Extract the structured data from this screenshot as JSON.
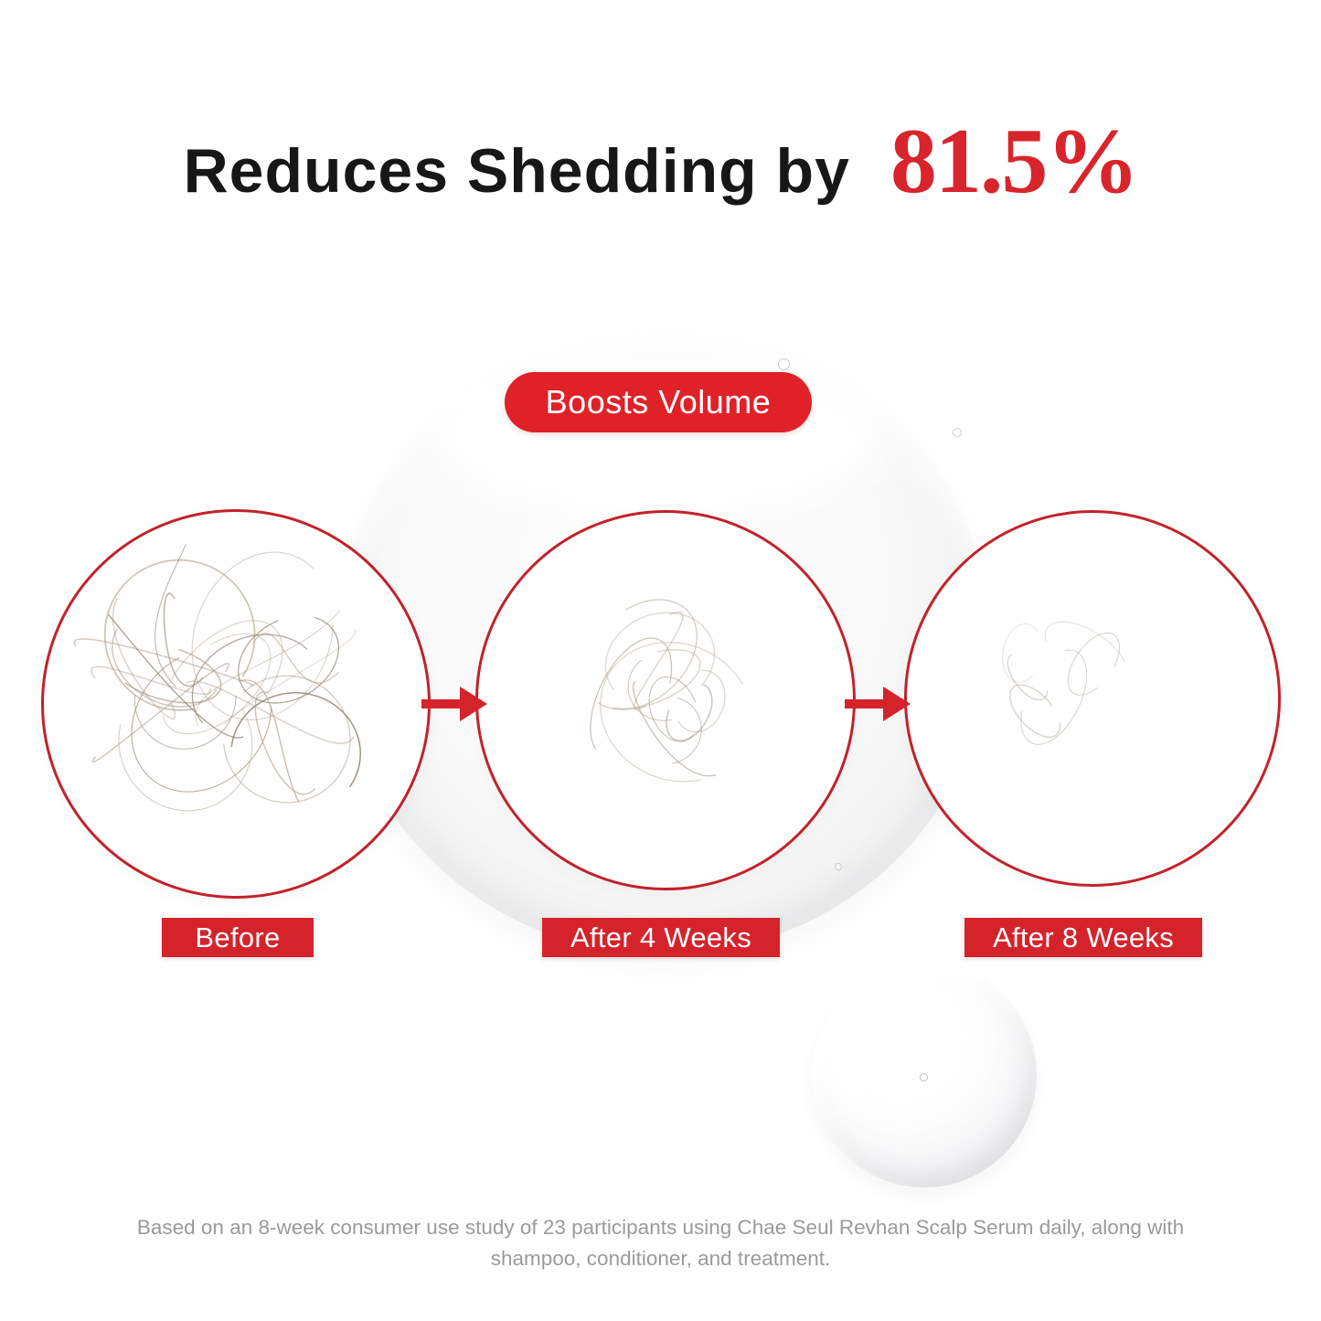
{
  "page": {
    "background": "#ffffff"
  },
  "header": {
    "title": "Reduces Shedding by",
    "stat": "81.5%",
    "title_color": "#171717",
    "stat_color": "#d8242b"
  },
  "badge": {
    "label": "Boosts Volume",
    "bg_color": "#e02128",
    "text_color": "#ffffff"
  },
  "comparison": {
    "circle_border_color": "#c2222a",
    "label_bg_color": "#d5232b",
    "label_text_color": "#ffffff",
    "arrow_color": "#d5232b",
    "stages": [
      {
        "label": "Before",
        "hair_density": "dense",
        "strands": 26
      },
      {
        "label": "After 4 Weeks",
        "hair_density": "medium",
        "strands": 12
      },
      {
        "label": "After 8 Weeks",
        "hair_density": "sparse",
        "strands": 6
      }
    ]
  },
  "footnote": {
    "text": "Based on an 8-week consumer use study of 23 participants using Chae Seul Revhan Scalp Serum daily, along with shampoo, conditioner, and treatment.",
    "color": "#9a9a9a"
  }
}
